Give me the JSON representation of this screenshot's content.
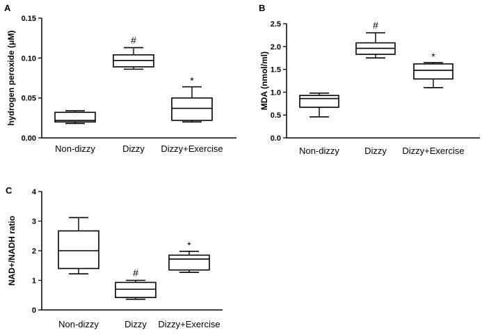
{
  "chart_data": [
    {
      "type": "box",
      "panel": "A",
      "ylabel": "hydrogen peroxide (μM)",
      "ylim": [
        0,
        0.15
      ],
      "yticks": [
        0.0,
        0.05,
        0.1,
        0.15
      ],
      "ytick_labels": [
        "0.00",
        "0.05",
        "0.10",
        "0.15"
      ],
      "categories": [
        "Non-dizzy",
        "Dizzy",
        "Dizzy+Exercise"
      ],
      "boxes": [
        {
          "min": 0.018,
          "q1": 0.02,
          "median": 0.022,
          "q3": 0.032,
          "max": 0.034,
          "annotation": ""
        },
        {
          "min": 0.086,
          "q1": 0.089,
          "median": 0.097,
          "q3": 0.104,
          "max": 0.113,
          "annotation": "#"
        },
        {
          "min": 0.02,
          "q1": 0.022,
          "median": 0.037,
          "q3": 0.05,
          "max": 0.064,
          "annotation": "*"
        }
      ]
    },
    {
      "type": "box",
      "panel": "B",
      "ylabel": "MDA (nmol/ml)",
      "ylim": [
        0,
        2.5
      ],
      "yticks": [
        0,
        0.5,
        1.0,
        1.5,
        2.0,
        2.5
      ],
      "ytick_labels": [
        "0.0",
        "0.5",
        "1.0",
        "1.5",
        "2.0",
        "2.5"
      ],
      "categories": [
        "Non-dizzy",
        "Dizzy",
        "Dizzy+Exercise"
      ],
      "boxes": [
        {
          "min": 0.46,
          "q1": 0.67,
          "median": 0.86,
          "q3": 0.93,
          "max": 0.98,
          "annotation": ""
        },
        {
          "min": 1.75,
          "q1": 1.83,
          "median": 1.96,
          "q3": 2.08,
          "max": 2.3,
          "annotation": "#"
        },
        {
          "min": 1.1,
          "q1": 1.29,
          "median": 1.48,
          "q3": 1.62,
          "max": 1.65,
          "annotation": "*"
        }
      ]
    },
    {
      "type": "box",
      "panel": "C",
      "ylabel": "NAD+/NADH ratio",
      "ylim": [
        0,
        4
      ],
      "yticks": [
        0,
        1,
        2,
        3,
        4
      ],
      "ytick_labels": [
        "0",
        "1",
        "2",
        "3",
        "4"
      ],
      "categories": [
        "Non-dizzy",
        "Dizzy",
        "Dizzy+Exercise"
      ],
      "boxes": [
        {
          "min": 1.22,
          "q1": 1.4,
          "median": 2.0,
          "q3": 2.67,
          "max": 3.12,
          "annotation": ""
        },
        {
          "min": 0.36,
          "q1": 0.42,
          "median": 0.7,
          "q3": 0.93,
          "max": 1.0,
          "annotation": "#"
        },
        {
          "min": 1.27,
          "q1": 1.35,
          "median": 1.72,
          "q3": 1.85,
          "max": 1.98,
          "annotation": "*"
        }
      ]
    }
  ]
}
